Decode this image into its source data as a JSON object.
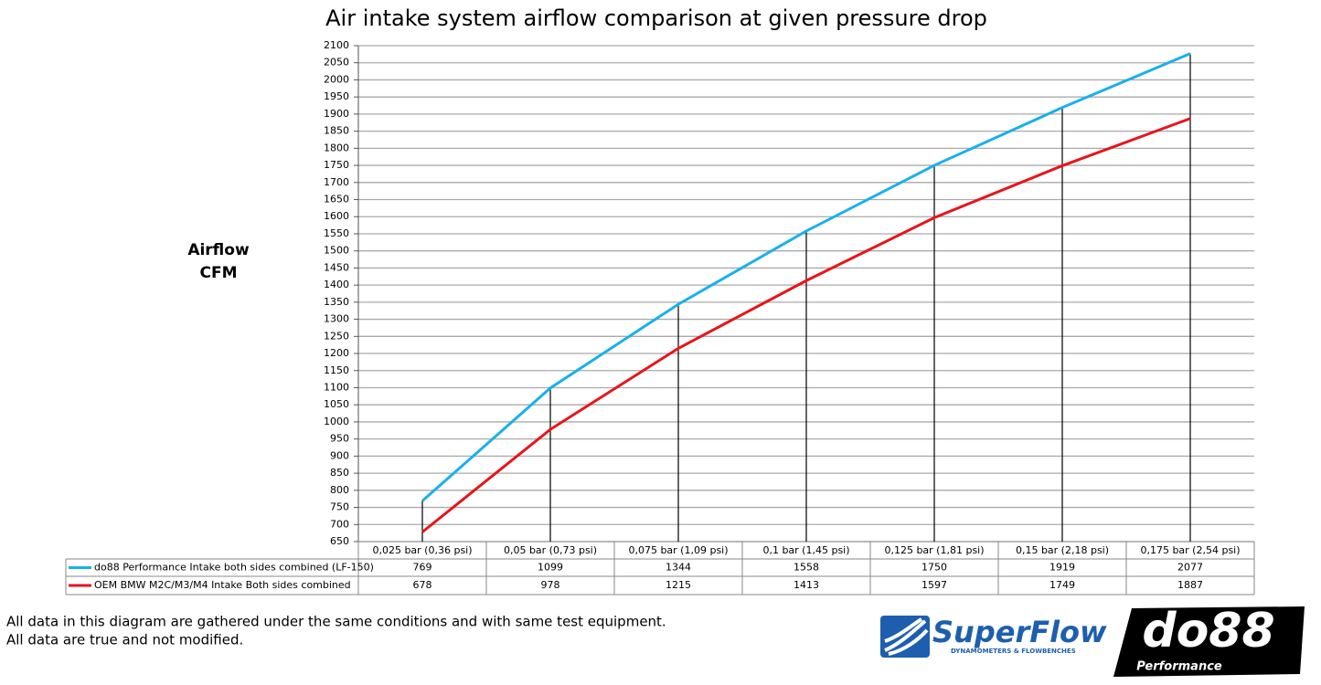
{
  "chart_data": {
    "type": "line",
    "title": "Air intake system airflow comparison at given pressure drop",
    "y_label": [
      "Airflow",
      "CFM"
    ],
    "categories": [
      "0,025 bar (0,36 psi)",
      "0,05 bar (0,73 psi)",
      "0,075 bar (1,09 psi)",
      "0,1 bar (1,45 psi)",
      "0,125 bar (1,81 psi)",
      "0,15 bar (2,18 psi)",
      "0,175 bar (2,54 psi)"
    ],
    "series": [
      {
        "name": "do88 Performance Intake both sides combined (LF-150)",
        "color": "#1ab0ec",
        "values": [
          769,
          1099,
          1344,
          1558,
          1750,
          1919,
          2077
        ]
      },
      {
        "name": "OEM BMW M2C/M3/M4 Intake Both sides combined",
        "color": "#e8141b",
        "values": [
          678,
          978,
          1215,
          1413,
          1597,
          1749,
          1887
        ]
      }
    ],
    "ylim": [
      650,
      2100
    ],
    "yticks": [
      650,
      700,
      750,
      800,
      850,
      900,
      950,
      1000,
      1050,
      1100,
      1150,
      1200,
      1250,
      1300,
      1350,
      1400,
      1450,
      1500,
      1550,
      1600,
      1650,
      1700,
      1750,
      1800,
      1850,
      1900,
      1950,
      2000,
      2050,
      2100
    ],
    "grid": true,
    "drop_lines": true
  },
  "notes": [
    "All data in this diagram are gathered under the same conditions and with same test equipment.",
    "All data are true and not modified."
  ],
  "logos": {
    "superflow": "SuperFlow",
    "superflow_tagline": "DYNAMOMETERS & FLOWBENCHES",
    "do88": "do88",
    "do88_tagline": "Performance"
  }
}
